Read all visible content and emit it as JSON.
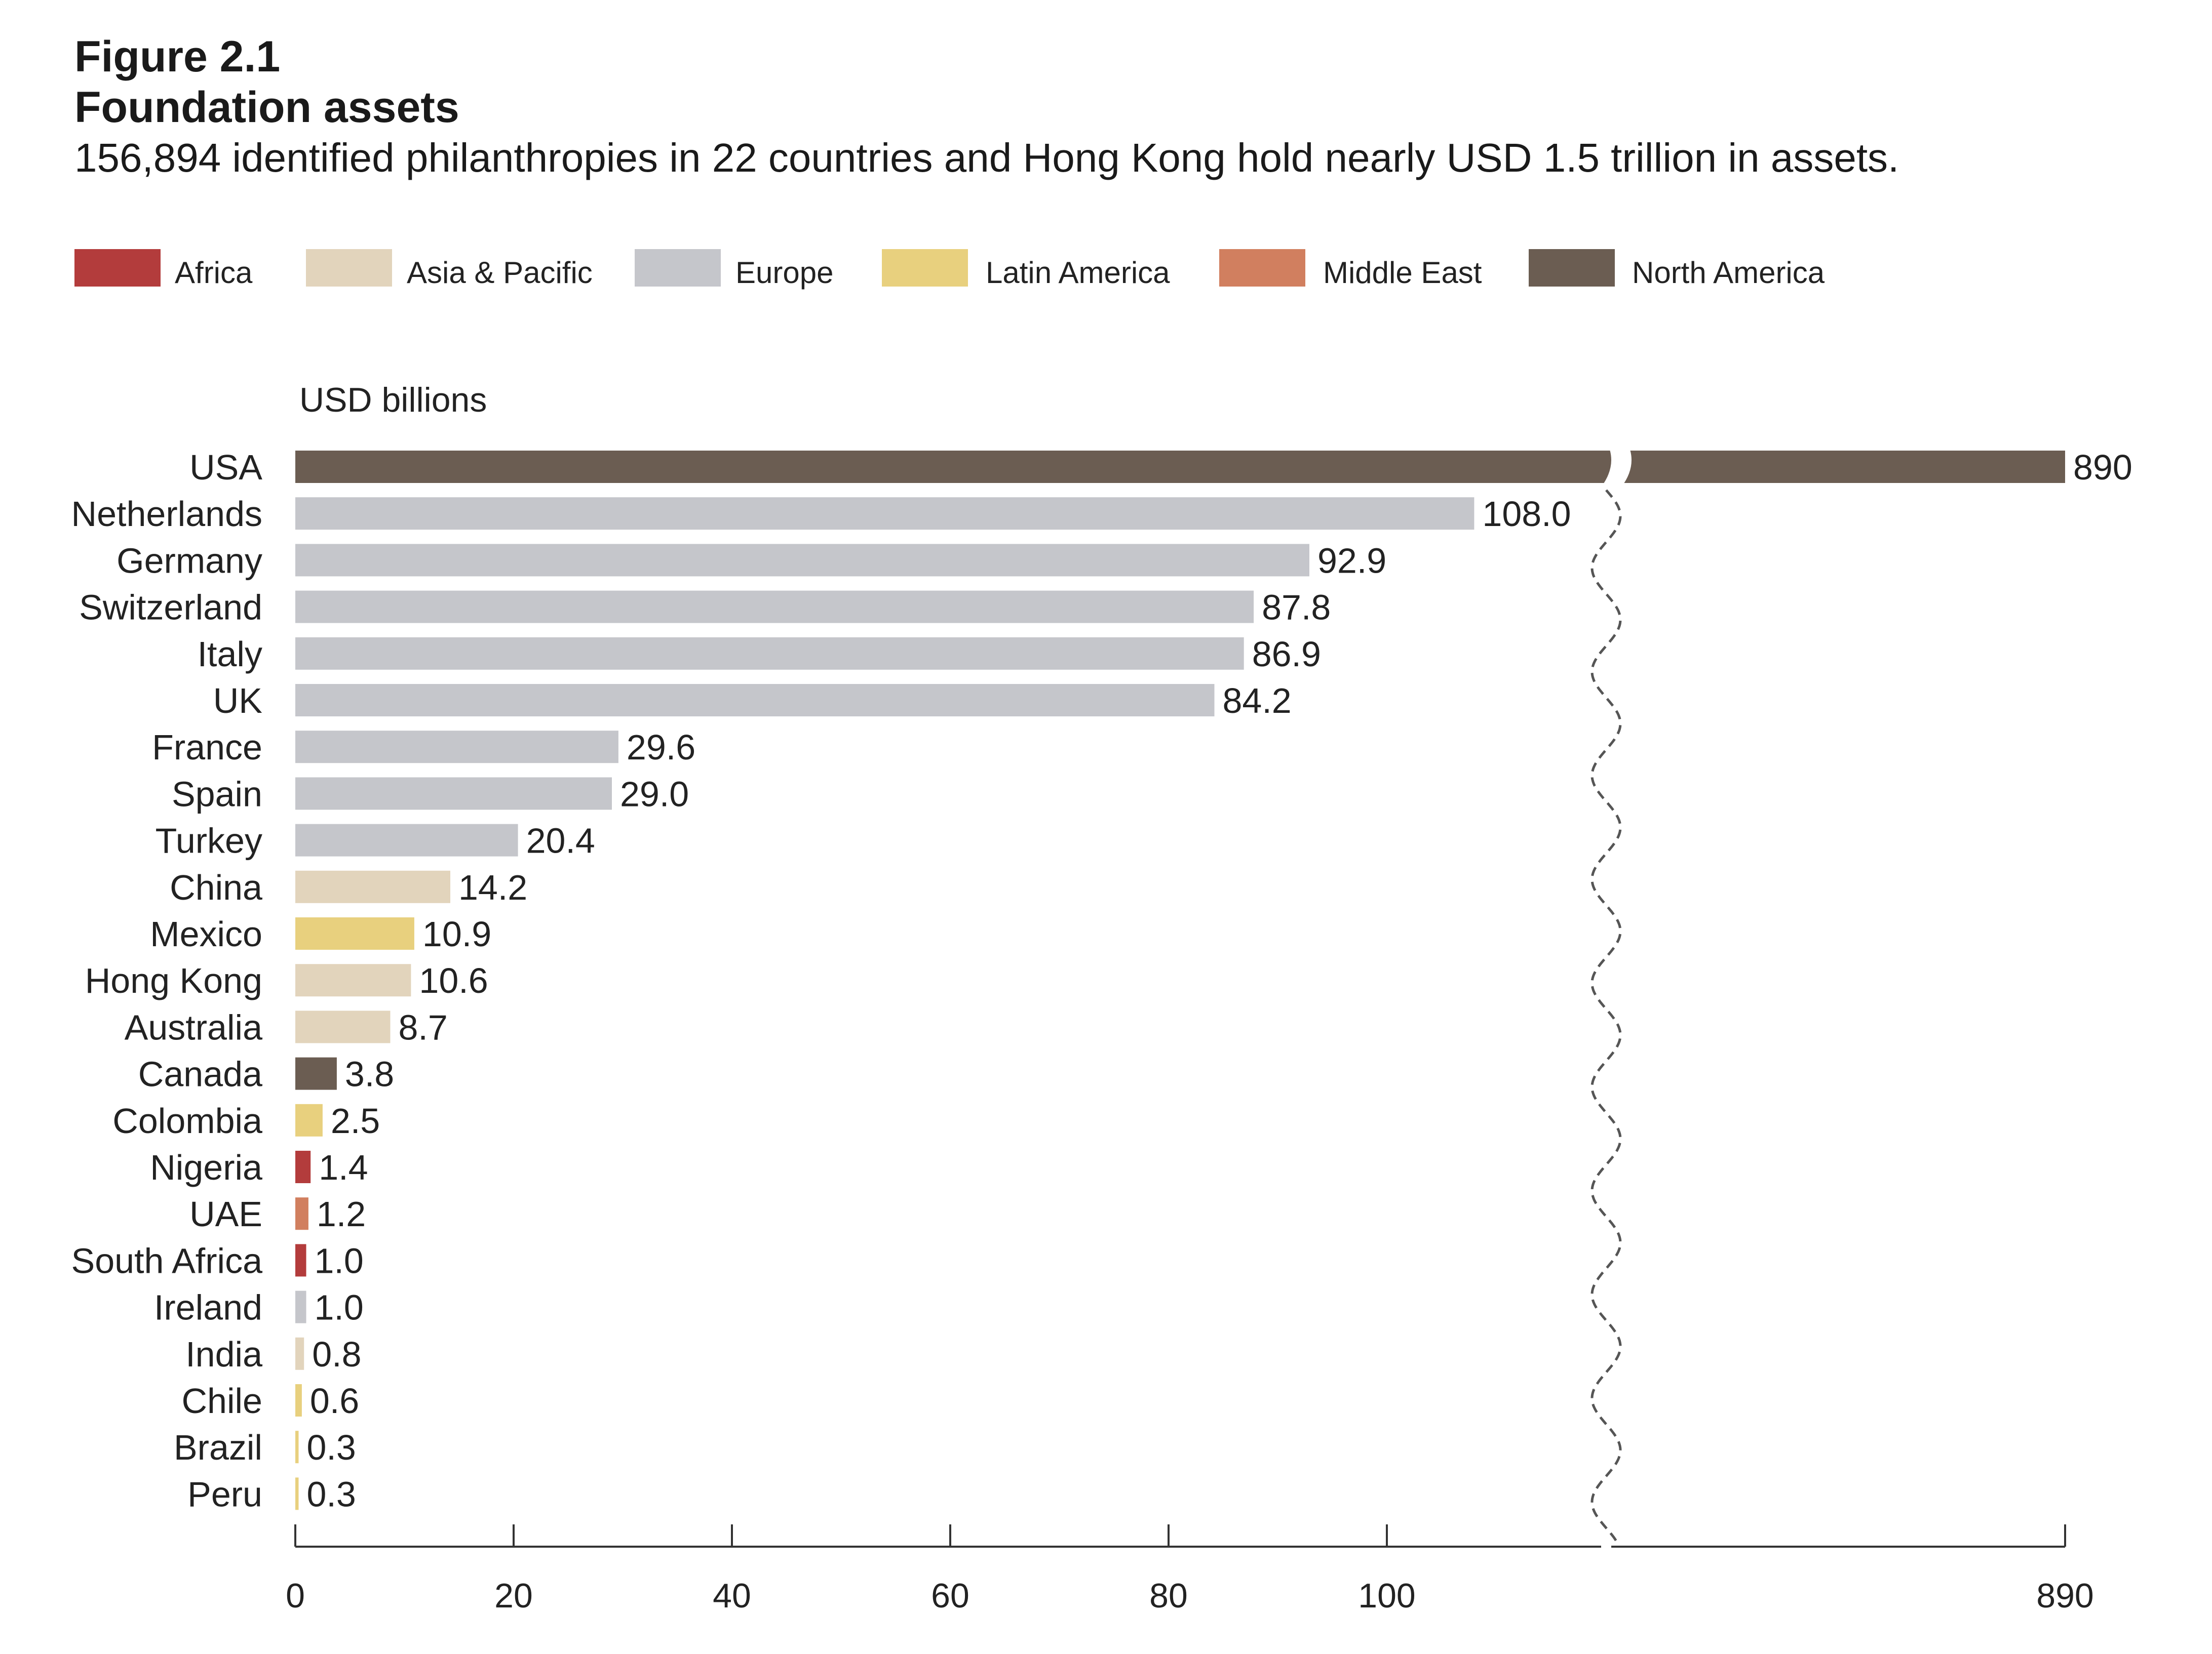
{
  "header": {
    "figure_number": "Figure 2.1",
    "title": "Foundation assets",
    "subtitle": "156,894 identified philanthropies in 22 countries and Hong Kong hold nearly USD 1.5 trillion in assets."
  },
  "legend": [
    {
      "key": "africa",
      "label": "Africa",
      "color": "#b33c3c"
    },
    {
      "key": "asia",
      "label": "Asia & Pacific",
      "color": "#e2d4bc"
    },
    {
      "key": "europe",
      "label": "Europe",
      "color": "#c5c6cb"
    },
    {
      "key": "latam",
      "label": "Latin America",
      "color": "#e8d07e"
    },
    {
      "key": "mideast",
      "label": "Middle East",
      "color": "#d17f5f"
    },
    {
      "key": "northam",
      "label": "North America",
      "color": "#6b5d52"
    }
  ],
  "chart_data": {
    "type": "bar",
    "orientation": "horizontal",
    "title": "Foundation assets",
    "unit_label": "USD billions",
    "xlabel": "",
    "ylabel": "",
    "axis_break": {
      "after": 120,
      "resumes_at": 890
    },
    "xlim": [
      0,
      890
    ],
    "x_ticks": [
      0,
      20,
      40,
      60,
      80,
      100,
      890
    ],
    "x_tick_labels": [
      "0",
      "20",
      "40",
      "60",
      "80",
      "100",
      "890"
    ],
    "grid": false,
    "legend_position": "top",
    "categories": [
      "USA",
      "Netherlands",
      "Germany",
      "Switzerland",
      "Italy",
      "UK",
      "France",
      "Spain",
      "Turkey",
      "China",
      "Mexico",
      "Hong Kong",
      "Australia",
      "Canada",
      "Colombia",
      "Nigeria",
      "UAE",
      "South Africa",
      "Ireland",
      "India",
      "Chile",
      "Brazil",
      "Peru"
    ],
    "values": [
      890,
      108.0,
      92.9,
      87.8,
      86.9,
      84.2,
      29.6,
      29.0,
      20.4,
      14.2,
      10.9,
      10.6,
      8.7,
      3.8,
      2.5,
      1.4,
      1.2,
      1.0,
      1.0,
      0.8,
      0.6,
      0.3,
      0.3
    ],
    "value_labels": [
      "890",
      "108.0",
      "92.9",
      "87.8",
      "86.9",
      "84.2",
      "29.6",
      "29.0",
      "20.4",
      "14.2",
      "10.9",
      "10.6",
      "8.7",
      "3.8",
      "2.5",
      "1.4",
      "1.2",
      "1.0",
      "1.0",
      "0.8",
      "0.6",
      "0.3",
      "0.3"
    ],
    "regions": [
      "northam",
      "europe",
      "europe",
      "europe",
      "europe",
      "europe",
      "europe",
      "europe",
      "europe",
      "asia",
      "latam",
      "asia",
      "asia",
      "northam",
      "latam",
      "africa",
      "mideast",
      "africa",
      "europe",
      "asia",
      "latam",
      "latam",
      "latam"
    ]
  }
}
